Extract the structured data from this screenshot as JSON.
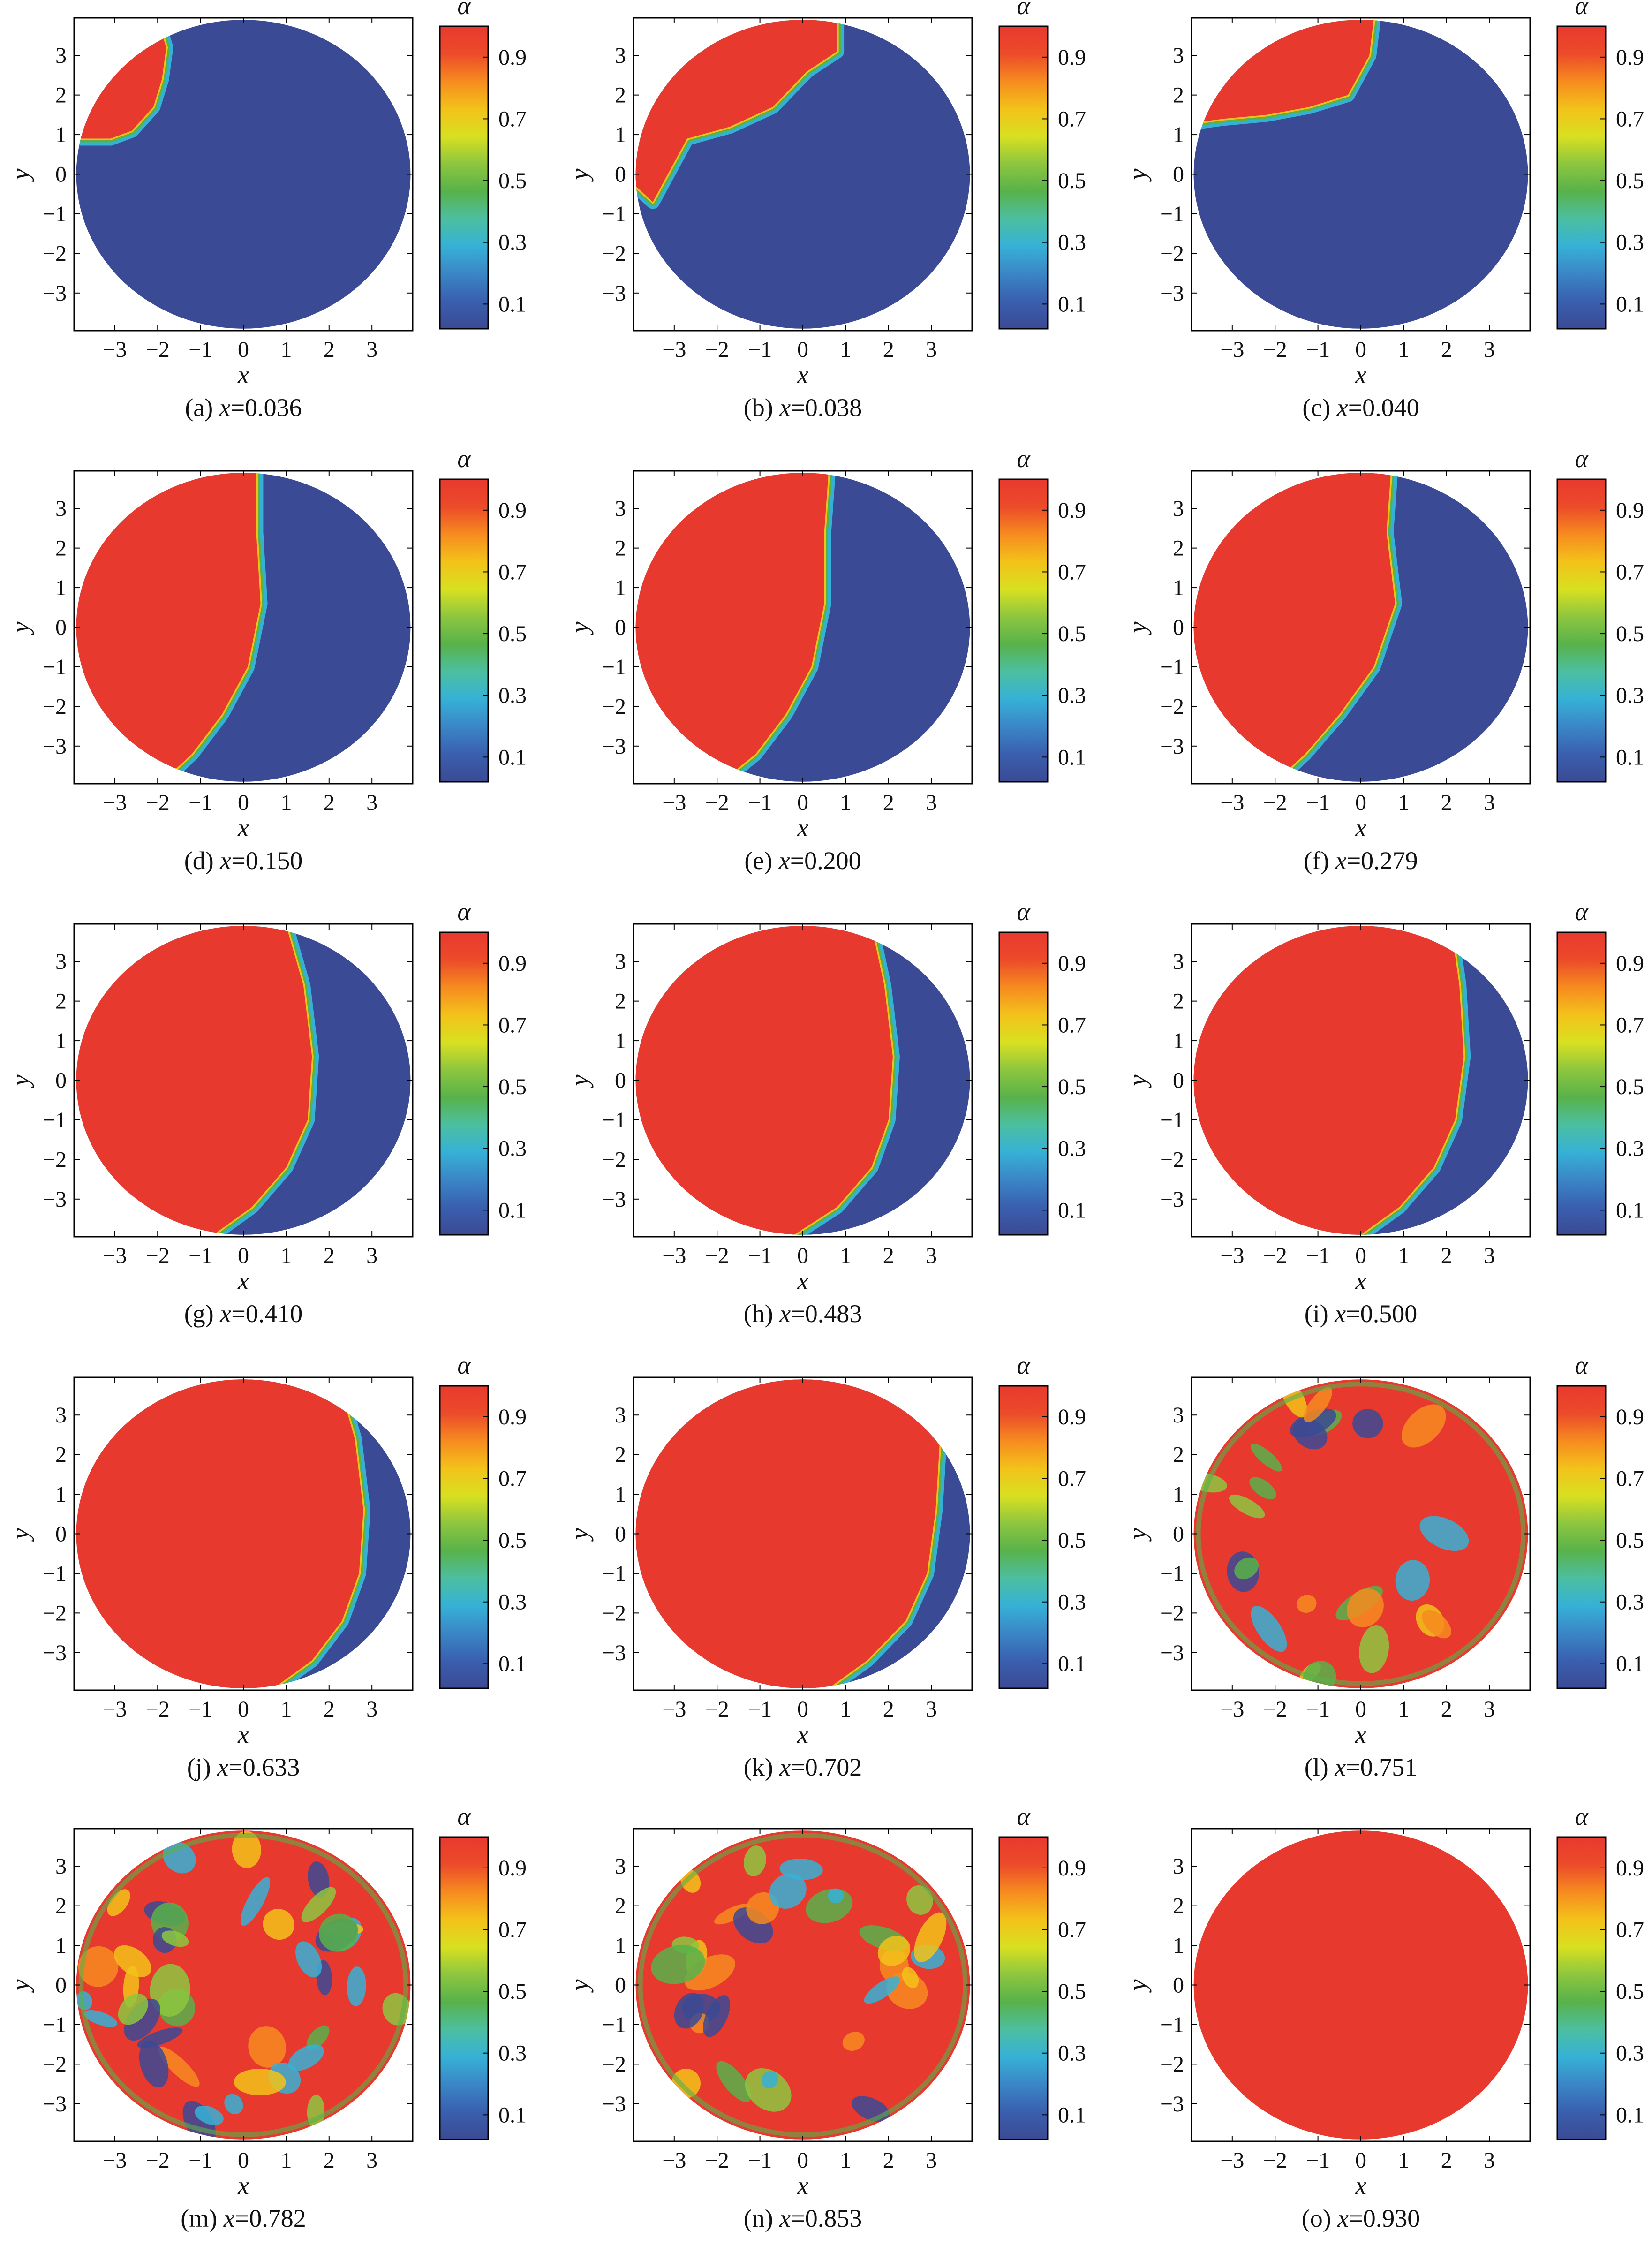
{
  "colormap": [
    "#3b4a94",
    "#3a5fae",
    "#3a86c6",
    "#36b1d6",
    "#4cbfa0",
    "#58b24a",
    "#8dc63f",
    "#d8e021",
    "#f3c21a",
    "#f68b1f",
    "#ec4b2a",
    "#e8392e"
  ],
  "colorbar": {
    "title": "α",
    "ticks": [
      "0.1",
      "0.3",
      "0.5",
      "0.7",
      "0.9"
    ]
  },
  "axes": {
    "xlabel": "x",
    "ylabel": "y",
    "xticks": [
      "−3",
      "−2",
      "−1",
      "0",
      "1",
      "2",
      "3"
    ],
    "yticks": [
      "3",
      "2",
      "1",
      "0",
      "−1",
      "−2",
      "−3"
    ]
  },
  "chart_data": [
    {
      "type": "heatmap",
      "panel": "(a)",
      "caption_var": "x",
      "caption_value": "=0.036",
      "interface_profile": "corner",
      "interface_x": [
        -3.9,
        -2.0,
        -1.8,
        -1.9,
        -2.1,
        -2.6,
        -3.1,
        -3.9
      ],
      "interface_y": [
        3.9,
        3.9,
        3.2,
        2.4,
        1.7,
        1.1,
        0.9,
        0.9
      ]
    },
    {
      "type": "heatmap",
      "panel": "(b)",
      "caption_var": "x",
      "caption_value": "=0.038",
      "interface_profile": "corner",
      "interface_x": [
        -3.9,
        0.8,
        0.8,
        0.1,
        -0.7,
        -1.7,
        -2.7,
        -3.5,
        -3.9
      ],
      "interface_y": [
        3.9,
        3.9,
        3.1,
        2.6,
        1.7,
        1.2,
        0.9,
        -0.7,
        -0.3
      ]
    },
    {
      "type": "heatmap",
      "panel": "(c)",
      "caption_var": "x",
      "caption_value": "=0.040",
      "interface_profile": "corner",
      "interface_x": [
        -3.9,
        0.3,
        0.2,
        -0.3,
        -1.2,
        -2.2,
        -3.2,
        -3.9
      ],
      "interface_y": [
        3.9,
        3.9,
        3.0,
        2.0,
        1.7,
        1.5,
        1.4,
        1.3
      ]
    },
    {
      "type": "heatmap",
      "panel": "(d)",
      "caption_var": "x",
      "caption_value": "=0.150",
      "interface_profile": "vertical",
      "interface_x": [
        0.3,
        0.3,
        0.4,
        0.1,
        -0.5,
        -1.2,
        -1.9
      ],
      "interface_y": [
        3.9,
        2.4,
        0.6,
        -1.0,
        -2.2,
        -3.2,
        -3.9
      ]
    },
    {
      "type": "heatmap",
      "panel": "(e)",
      "caption_var": "x",
      "caption_value": "=0.200",
      "interface_profile": "vertical",
      "interface_x": [
        0.6,
        0.5,
        0.5,
        0.2,
        -0.4,
        -1.1,
        -1.9
      ],
      "interface_y": [
        3.9,
        2.4,
        0.6,
        -1.0,
        -2.2,
        -3.2,
        -3.9
      ]
    },
    {
      "type": "heatmap",
      "panel": "(f)",
      "caption_var": "x",
      "caption_value": "=0.279",
      "interface_profile": "vertical",
      "interface_x": [
        0.7,
        0.6,
        0.8,
        0.3,
        -0.5,
        -1.3,
        -2.0
      ],
      "interface_y": [
        3.9,
        2.4,
        0.6,
        -1.0,
        -2.2,
        -3.2,
        -3.9
      ]
    },
    {
      "type": "heatmap",
      "panel": "(g)",
      "caption_var": "x",
      "caption_value": "=0.410",
      "interface_profile": "vertical",
      "interface_x": [
        1.0,
        1.4,
        1.6,
        1.5,
        1.0,
        0.2,
        -0.7
      ],
      "interface_y": [
        3.9,
        2.4,
        0.6,
        -1.0,
        -2.2,
        -3.2,
        -3.9
      ]
    },
    {
      "type": "heatmap",
      "panel": "(h)",
      "caption_var": "x",
      "caption_value": "=0.483",
      "interface_profile": "vertical",
      "interface_x": [
        1.6,
        1.9,
        2.1,
        2.0,
        1.6,
        0.8,
        -0.2
      ],
      "interface_y": [
        3.9,
        2.4,
        0.6,
        -1.0,
        -2.2,
        -3.2,
        -3.9
      ]
    },
    {
      "type": "heatmap",
      "panel": "(i)",
      "caption_var": "x",
      "caption_value": "=0.500",
      "interface_profile": "vertical",
      "interface_x": [
        2.1,
        2.3,
        2.4,
        2.2,
        1.7,
        0.9,
        0.0
      ],
      "interface_y": [
        3.9,
        2.4,
        0.6,
        -1.0,
        -2.2,
        -3.2,
        -3.9
      ]
    },
    {
      "type": "heatmap",
      "panel": "(j)",
      "caption_var": "x",
      "caption_value": "=0.633",
      "interface_profile": "vertical",
      "interface_x": [
        2.2,
        2.6,
        2.8,
        2.7,
        2.3,
        1.6,
        0.7
      ],
      "interface_y": [
        3.9,
        2.4,
        0.6,
        -1.0,
        -2.2,
        -3.2,
        -3.9
      ]
    },
    {
      "type": "heatmap",
      "panel": "(k)",
      "caption_var": "x",
      "caption_value": "=0.702",
      "interface_profile": "vertical",
      "interface_x": [
        2.7,
        3.2,
        3.1,
        2.9,
        2.4,
        1.5,
        0.6
      ],
      "interface_y": [
        3.9,
        2.4,
        0.6,
        -1.0,
        -2.2,
        -3.2,
        -3.9
      ]
    },
    {
      "type": "heatmap",
      "panel": "(l)",
      "caption_var": "x",
      "caption_value": "=0.751",
      "interface_profile": "mixed",
      "mixing": 0.35,
      "seed": 12
    },
    {
      "type": "heatmap",
      "panel": "(m)",
      "caption_var": "x",
      "caption_value": "=0.782",
      "interface_profile": "mixed",
      "mixing": 0.75,
      "seed": 27
    },
    {
      "type": "heatmap",
      "panel": "(n)",
      "caption_var": "x",
      "caption_value": "=0.853",
      "interface_profile": "mixed",
      "mixing": 0.55,
      "seed": 41
    },
    {
      "type": "heatmap",
      "panel": "(o)",
      "caption_var": "x",
      "caption_value": "=0.930",
      "interface_profile": "full"
    }
  ]
}
